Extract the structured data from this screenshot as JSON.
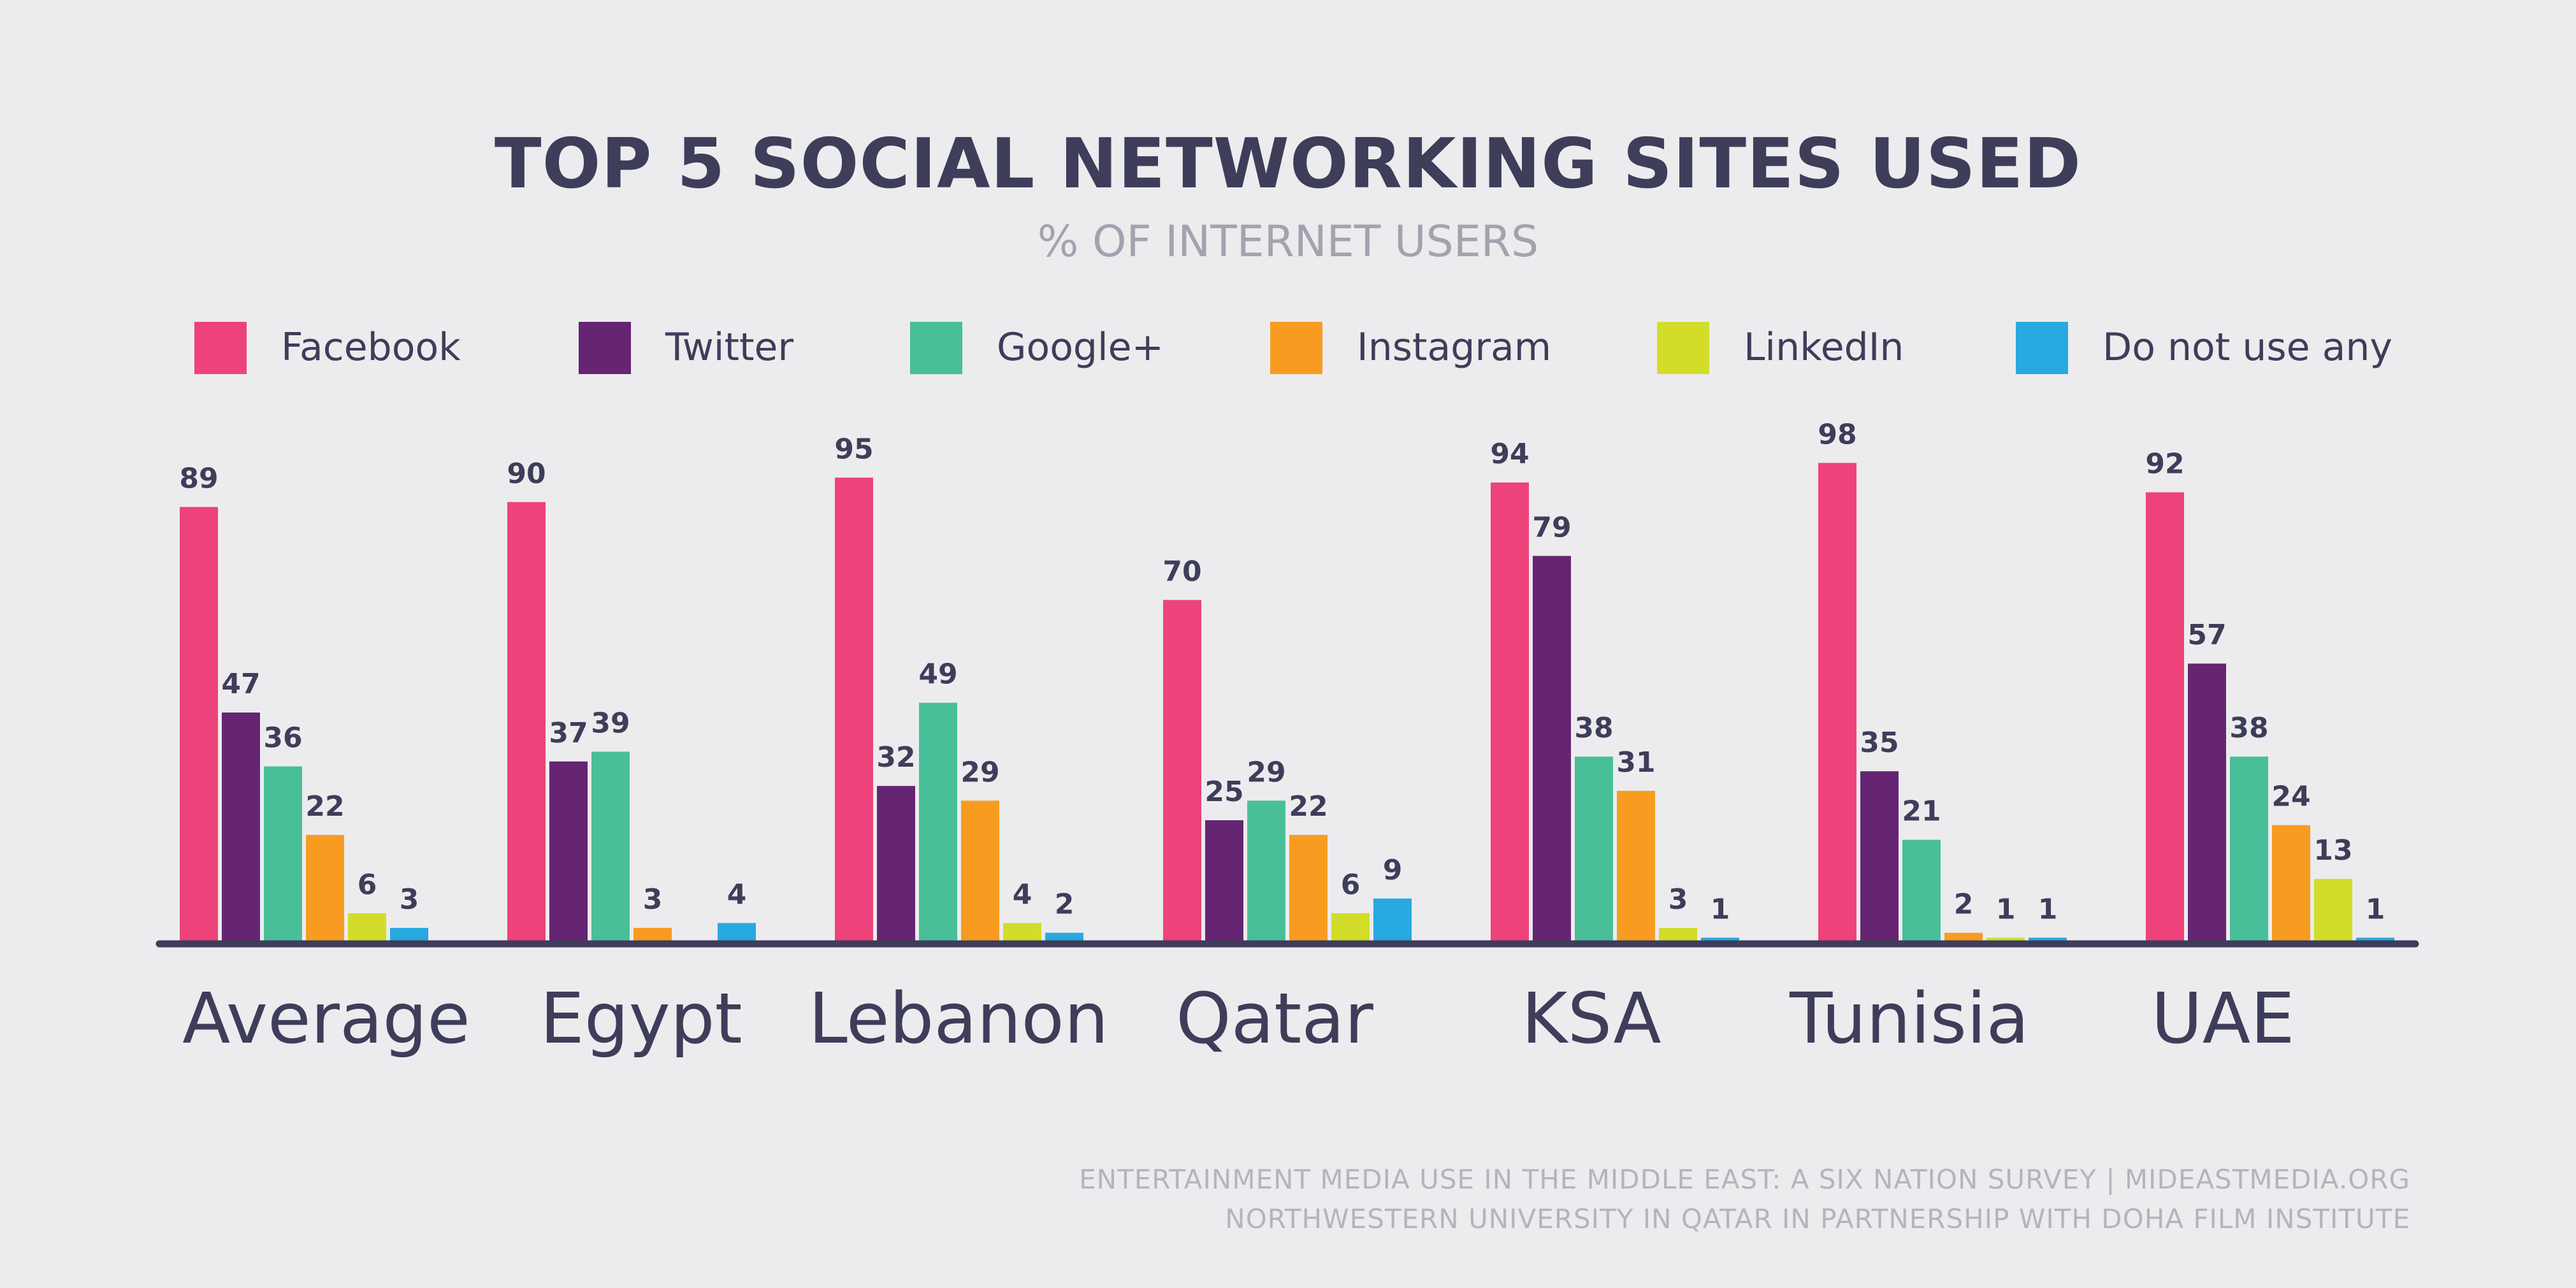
{
  "chart_data": {
    "type": "bar",
    "title": "TOP 5 SOCIAL NETWORKING SITES USED",
    "subtitle": "% OF INTERNET USERS",
    "categories": [
      "Average",
      "Egypt",
      "Lebanon",
      "Qatar",
      "KSA",
      "Tunisia",
      "UAE"
    ],
    "series": [
      {
        "name": "Facebook",
        "color": "#ee427a",
        "values": [
          89,
          90,
          95,
          70,
          94,
          98,
          92
        ]
      },
      {
        "name": "Twitter",
        "color": "#652572",
        "values": [
          47,
          37,
          32,
          25,
          79,
          35,
          57
        ]
      },
      {
        "name": "Google+",
        "color": "#48bf99",
        "values": [
          36,
          39,
          49,
          29,
          38,
          21,
          38
        ]
      },
      {
        "name": "Instagram",
        "color": "#f79c21",
        "values": [
          22,
          3,
          29,
          22,
          31,
          2,
          24
        ]
      },
      {
        "name": "LinkedIn",
        "color": "#d2dd2a",
        "values": [
          6,
          null,
          4,
          6,
          3,
          1,
          13
        ]
      },
      {
        "name": "Do not use any",
        "color": "#27a9df",
        "values": [
          3,
          4,
          2,
          9,
          1,
          1,
          1
        ]
      }
    ],
    "ylim": [
      0,
      100
    ],
    "legend_position": "top",
    "grid": false
  },
  "footer": {
    "line1": "ENTERTAINMENT MEDIA USE IN THE MIDDLE EAST: A SIX NATION SURVEY | MIDEASTMEDIA.ORG",
    "line2": "NORTHWESTERN UNIVERSITY IN QATAR IN PARTNERSHIP WITH DOHA FILM INSTITUTE"
  }
}
